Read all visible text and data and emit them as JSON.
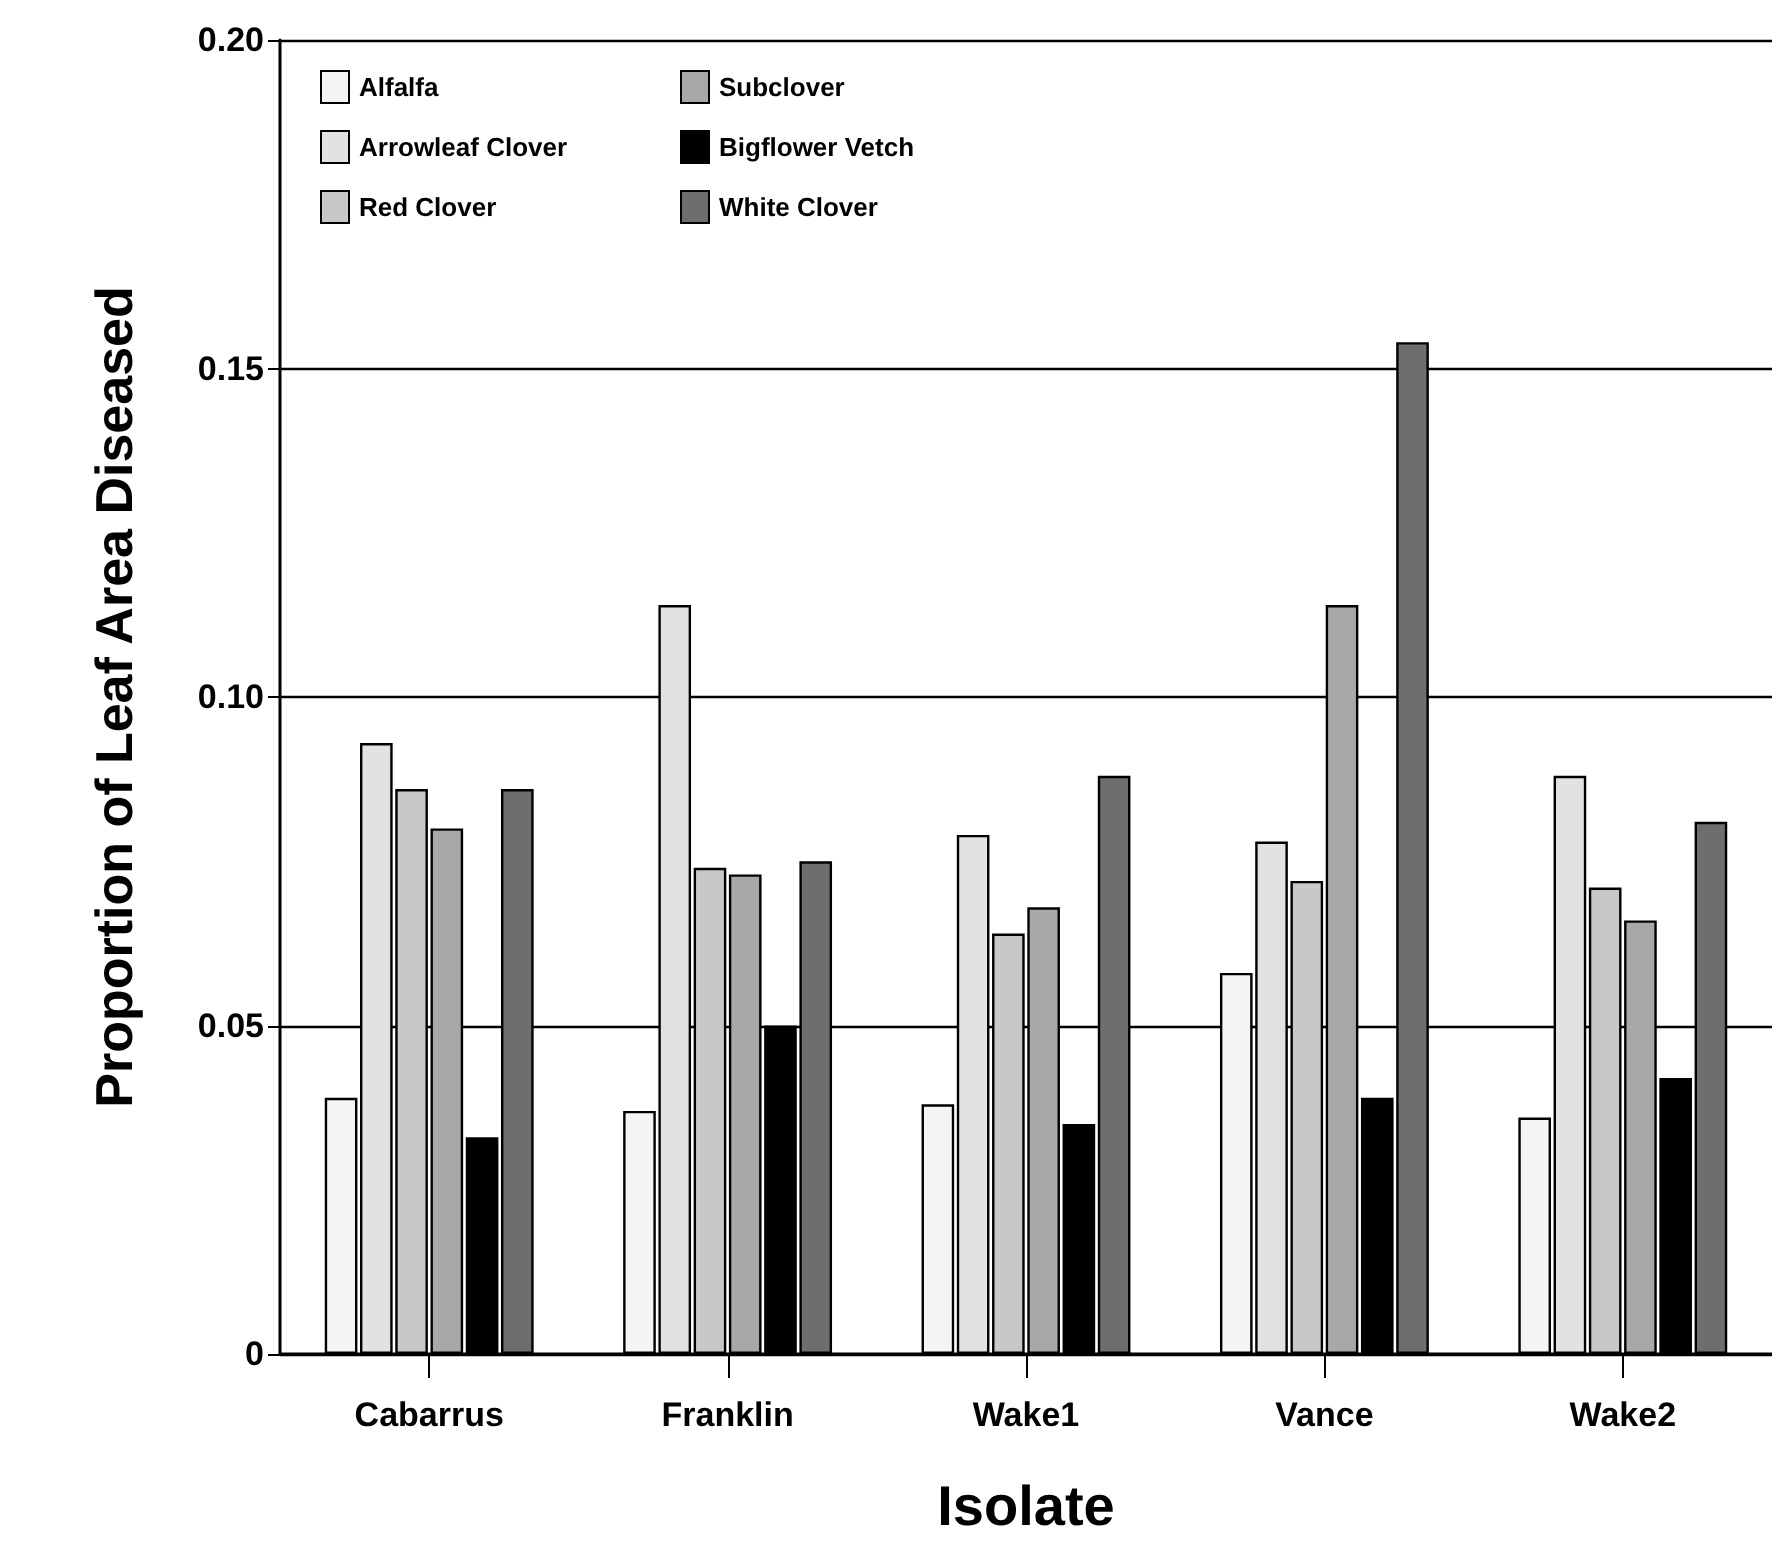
{
  "chart_data": {
    "type": "bar",
    "xlabel": "Isolate",
    "ylabel": "Proportion of Leaf Area Diseased",
    "categories": [
      "Cabarrus",
      "Franklin",
      "Wake1",
      "Vance",
      "Wake2"
    ],
    "series": [
      {
        "name": "Alfalfa",
        "color": "#f4f4f4",
        "values": [
          0.039,
          0.037,
          0.038,
          0.058,
          0.036
        ]
      },
      {
        "name": "Arrowleaf Clover",
        "color": "#e2e2e2",
        "values": [
          0.093,
          0.114,
          0.079,
          0.078,
          0.088
        ]
      },
      {
        "name": "Red Clover",
        "color": "#c8c8c8",
        "values": [
          0.086,
          0.074,
          0.064,
          0.072,
          0.071
        ]
      },
      {
        "name": "Subclover",
        "color": "#a8a8a8",
        "values": [
          0.08,
          0.073,
          0.068,
          0.114,
          0.066
        ]
      },
      {
        "name": "Bigflower Vetch",
        "color": "#000000",
        "values": [
          0.033,
          0.05,
          0.035,
          0.039,
          0.042
        ]
      },
      {
        "name": "White Clover",
        "color": "#6e6e6e",
        "values": [
          0.086,
          0.075,
          0.088,
          0.154,
          0.081
        ]
      }
    ],
    "ylim": [
      0,
      0.2
    ],
    "yticks": [
      {
        "value": 0,
        "label": "0"
      },
      {
        "value": 0.05,
        "label": "0.05"
      },
      {
        "value": 0.1,
        "label": "0.10"
      },
      {
        "value": 0.15,
        "label": "0.15"
      },
      {
        "value": 0.2,
        "label": "0.20"
      }
    ],
    "grid": "y",
    "legend": "top left"
  }
}
